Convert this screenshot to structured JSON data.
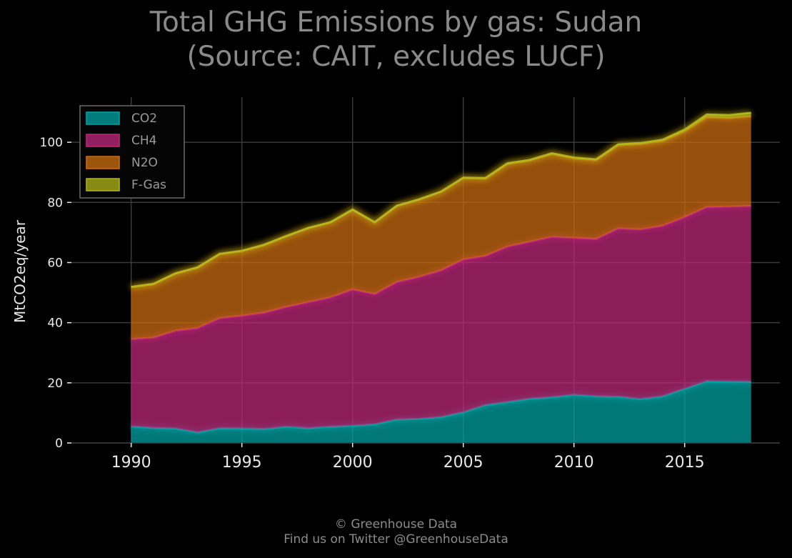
{
  "chart_data": {
    "type": "area",
    "stacked": true,
    "title": "Total GHG Emissions by gas: Sudan",
    "subtitle": "(Source: CAIT, excludes LUCF)",
    "xlabel": "",
    "ylabel": "MtCO2eq/year",
    "xlim": [
      1987.3,
      2019.3
    ],
    "ylim": [
      0,
      115
    ],
    "xticks": [
      1990,
      1995,
      2000,
      2005,
      2010,
      2015
    ],
    "yticks": [
      0,
      20,
      40,
      60,
      80,
      100
    ],
    "grid": true,
    "legend_position": "top-left",
    "x": [
      1990,
      1991,
      1992,
      1993,
      1994,
      1995,
      1996,
      1997,
      1998,
      1999,
      2000,
      2001,
      2002,
      2003,
      2004,
      2005,
      2006,
      2007,
      2008,
      2009,
      2010,
      2011,
      2012,
      2013,
      2014,
      2015,
      2016,
      2017,
      2018
    ],
    "series": [
      {
        "name": "CO2",
        "color": "#00a6a6",
        "values": [
          5.5,
          5.0,
          4.8,
          3.5,
          4.9,
          4.8,
          4.6,
          5.4,
          4.9,
          5.4,
          5.7,
          6.2,
          7.8,
          8.0,
          8.6,
          10.2,
          12.6,
          13.6,
          14.7,
          15.2,
          16.0,
          15.5,
          15.4,
          14.6,
          15.5,
          18.0,
          20.5,
          20.4,
          20.3
        ]
      },
      {
        "name": "CH4",
        "color": "#c2287c",
        "values": [
          29.0,
          30.0,
          32.5,
          34.7,
          36.6,
          37.5,
          38.7,
          39.8,
          41.9,
          43.0,
          45.3,
          43.3,
          45.7,
          47.2,
          48.8,
          50.8,
          49.6,
          51.7,
          52.2,
          53.3,
          52.2,
          52.3,
          55.9,
          56.4,
          56.7,
          57.1,
          57.9,
          58.2,
          58.5
        ]
      },
      {
        "name": "N2O",
        "color": "#d06f10",
        "values": [
          17.3,
          17.8,
          19.0,
          20.1,
          21.3,
          21.5,
          22.5,
          23.5,
          24.6,
          24.9,
          26.5,
          23.8,
          25.3,
          25.7,
          26.1,
          27.1,
          25.7,
          27.5,
          27.0,
          27.6,
          26.4,
          26.2,
          27.7,
          28.4,
          28.2,
          28.5,
          29.9,
          29.4,
          29.8
        ]
      },
      {
        "name": "F-Gas",
        "color": "#b3b81a",
        "values": [
          0.1,
          0.1,
          0.1,
          0.1,
          0.1,
          0.1,
          0.1,
          0.1,
          0.1,
          0.1,
          0.1,
          0.1,
          0.1,
          0.1,
          0.1,
          0.1,
          0.2,
          0.2,
          0.2,
          0.2,
          0.3,
          0.3,
          0.3,
          0.3,
          0.4,
          0.6,
          0.9,
          1.0,
          1.2
        ]
      }
    ]
  },
  "footer": {
    "line1": "© Greenhouse Data",
    "line2": "Find us on Twitter @GreenhouseData"
  }
}
